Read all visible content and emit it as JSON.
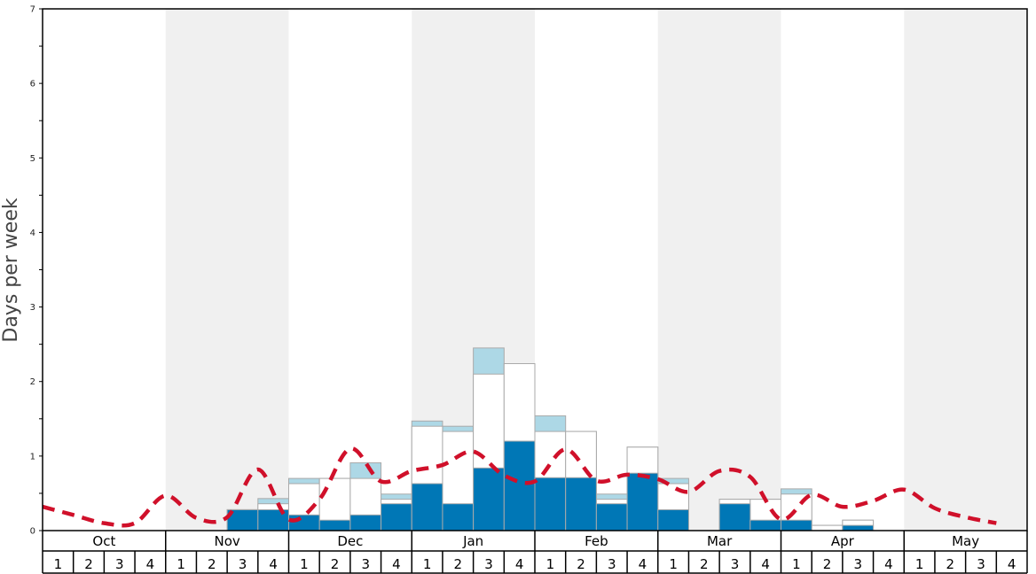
{
  "chart_data": {
    "type": "bar",
    "ylabel": "Days per week",
    "ylim": [
      0,
      7
    ],
    "y_ticks": [
      "0",
      "1",
      "2",
      "3",
      "4",
      "5",
      "6",
      "7"
    ],
    "months": [
      "Oct",
      "Nov",
      "Dec",
      "Jan",
      "Feb",
      "Mar",
      "Apr",
      "May"
    ],
    "weeks": [
      "1",
      "2",
      "3",
      "4"
    ],
    "series": [
      {
        "values": [
          0,
          0,
          0,
          0,
          0,
          0,
          0.28,
          0.28,
          0.21,
          0.14,
          0.21,
          0.36,
          0.63,
          0.36,
          0.84,
          1.2,
          0.71,
          0.71,
          0.36,
          0.77,
          0.28,
          0,
          0.36,
          0.14,
          0.14,
          0,
          0.07,
          0,
          0,
          0,
          0,
          0
        ],
        "color": "#0077b6"
      },
      {
        "values": [
          0,
          0,
          0,
          0,
          0,
          0,
          0.28,
          0.36,
          0.63,
          0.7,
          0.7,
          0.42,
          1.4,
          1.33,
          2.1,
          2.24,
          1.33,
          1.33,
          0.42,
          1.12,
          0.63,
          0,
          0.42,
          0.42,
          0.49,
          0.07,
          0.14,
          0,
          0,
          0,
          0,
          0
        ],
        "color": "#ffffff"
      },
      {
        "values": [
          0,
          0,
          0,
          0,
          0,
          0,
          0.28,
          0.43,
          0.7,
          0.7,
          0.91,
          0.49,
          1.47,
          1.4,
          2.45,
          2.24,
          1.54,
          1.33,
          0.49,
          1.12,
          0.7,
          0,
          0.42,
          0.42,
          0.56,
          0.07,
          0.14,
          0,
          0,
          0,
          0,
          0
        ],
        "color": "#add8e6"
      },
      {
        "type": "line",
        "values": [
          0.32,
          0.21,
          0.1,
          0.1,
          0.47,
          0.17,
          0.18,
          0.82,
          0.15,
          0.42,
          1.1,
          0.66,
          0.8,
          0.88,
          1.06,
          0.74,
          0.66,
          1.09,
          0.67,
          0.75,
          0.69,
          0.52,
          0.8,
          0.72,
          0.15,
          0.48,
          0.32,
          0.4,
          0.55,
          0.3,
          0.18,
          0.1
        ],
        "color": "#d0102a"
      }
    ]
  }
}
